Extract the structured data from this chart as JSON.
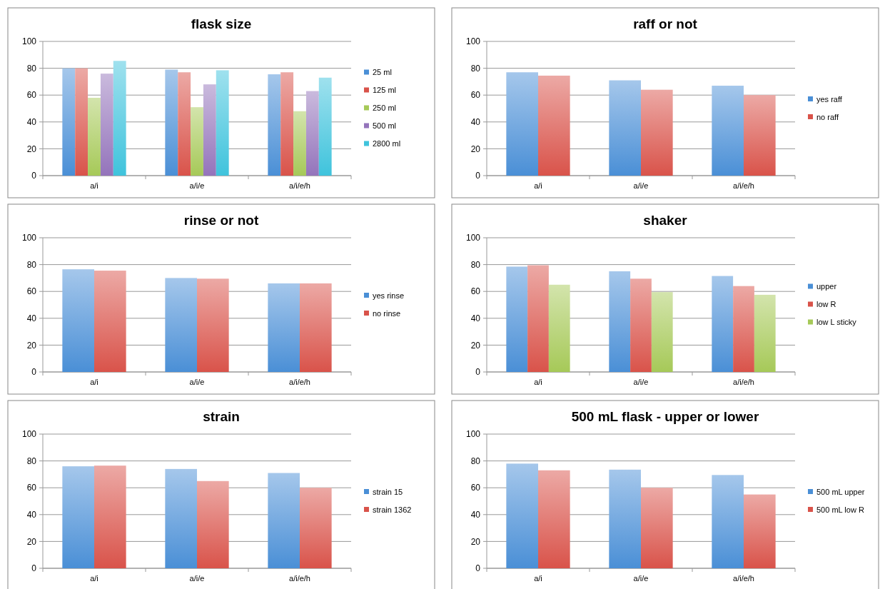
{
  "chart_data": [
    {
      "type": "bar",
      "title": "flask size",
      "categories": [
        "a/i",
        "a/i/e",
        "a/i/e/h"
      ],
      "series": [
        {
          "name": "25 ml",
          "color": "#4a8fd6",
          "values": [
            80,
            79,
            75.5
          ]
        },
        {
          "name": "125 ml",
          "color": "#d9534a",
          "values": [
            80,
            77,
            77
          ]
        },
        {
          "name": "250 ml",
          "color": "#a6c958",
          "values": [
            58,
            51,
            48
          ]
        },
        {
          "name": "500 ml",
          "color": "#9474bb",
          "values": [
            76,
            68,
            63
          ]
        },
        {
          "name": "2800 ml",
          "color": "#3fc3dc",
          "values": [
            85.5,
            78.5,
            73
          ]
        }
      ],
      "ylim": [
        0,
        100
      ],
      "yticks": [
        0,
        20,
        40,
        60,
        80,
        100
      ],
      "grid": "y",
      "legend": "right"
    },
    {
      "type": "bar",
      "title": "raff or not",
      "categories": [
        "a/i",
        "a/i/e",
        "a/i/e/h"
      ],
      "series": [
        {
          "name": "yes raff",
          "color": "#4a8fd6",
          "values": [
            77,
            71,
            67
          ]
        },
        {
          "name": "no raff",
          "color": "#d9534a",
          "values": [
            74.5,
            64,
            60
          ]
        }
      ],
      "ylim": [
        0,
        100
      ],
      "yticks": [
        0,
        20,
        40,
        60,
        80,
        100
      ],
      "grid": "y",
      "legend": "right"
    },
    {
      "type": "bar",
      "title": "rinse or not",
      "categories": [
        "a/i",
        "a/i/e",
        "a/i/e/h"
      ],
      "series": [
        {
          "name": "yes rinse",
          "color": "#4a8fd6",
          "values": [
            76.5,
            70,
            66
          ]
        },
        {
          "name": "no rinse",
          "color": "#d9534a",
          "values": [
            75.5,
            69.5,
            66
          ]
        }
      ],
      "ylim": [
        0,
        100
      ],
      "yticks": [
        0,
        20,
        40,
        60,
        80,
        100
      ],
      "grid": "y",
      "legend": "right"
    },
    {
      "type": "bar",
      "title": "shaker",
      "categories": [
        "a/i",
        "a/i/e",
        "a/i/e/h"
      ],
      "series": [
        {
          "name": "upper",
          "color": "#4a8fd6",
          "values": [
            78.5,
            75,
            71.5
          ]
        },
        {
          "name": "low R",
          "color": "#d9534a",
          "values": [
            79.5,
            69.5,
            64
          ]
        },
        {
          "name": "low L sticky",
          "color": "#a6c958",
          "values": [
            65,
            59.5,
            57.5
          ]
        }
      ],
      "ylim": [
        0,
        100
      ],
      "yticks": [
        0,
        20,
        40,
        60,
        80,
        100
      ],
      "grid": "y",
      "legend": "right"
    },
    {
      "type": "bar",
      "title": "strain",
      "categories": [
        "a/i",
        "a/i/e",
        "a/i/e/h"
      ],
      "series": [
        {
          "name": "strain 15",
          "color": "#4a8fd6",
          "values": [
            76,
            74,
            71
          ]
        },
        {
          "name": "strain 1362",
          "color": "#d9534a",
          "values": [
            76.5,
            65,
            60
          ]
        }
      ],
      "ylim": [
        0,
        100
      ],
      "yticks": [
        0,
        20,
        40,
        60,
        80,
        100
      ],
      "grid": "y",
      "legend": "right"
    },
    {
      "type": "bar",
      "title": "500 mL flask - upper or lower",
      "categories": [
        "a/i",
        "a/i/e",
        "a/i/e/h"
      ],
      "series": [
        {
          "name": "500 mL upper",
          "color": "#4a8fd6",
          "values": [
            78,
            73.5,
            69.5
          ]
        },
        {
          "name": "500 mL low R",
          "color": "#d9534a",
          "values": [
            73,
            60,
            55
          ]
        }
      ],
      "ylim": [
        0,
        100
      ],
      "yticks": [
        0,
        20,
        40,
        60,
        80,
        100
      ],
      "grid": "y",
      "legend": "right"
    }
  ]
}
